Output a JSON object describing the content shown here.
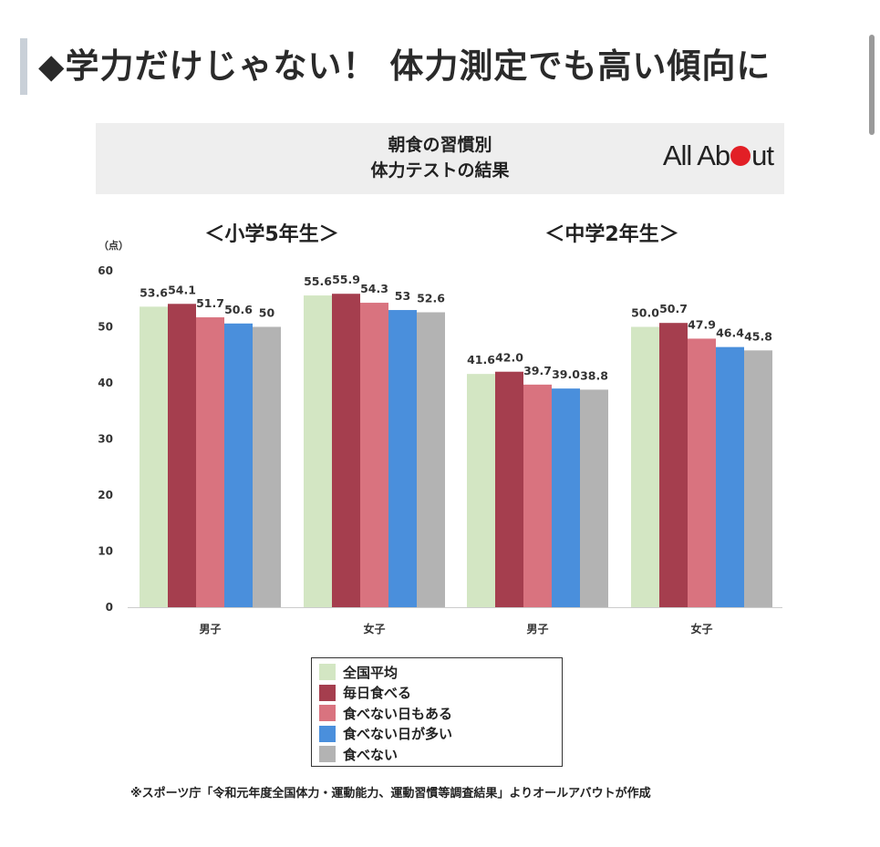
{
  "heading": "◆学力だけじゃない！ 体力測定でも高い傾向に",
  "figure": {
    "title_line1": "朝食の習慣別",
    "title_line2": "体力テストの結果",
    "logo_part1": "All Ab",
    "logo_part2": "ut",
    "source_note": "※スポーツ庁「令和元年度全国体力・運動能力、運動習慣等調査結果」よりオールアバウトが作成"
  },
  "chart_data": {
    "type": "bar",
    "unit_label": "（点）",
    "group_labels": [
      "＜小学5年生＞",
      "＜中学2年生＞"
    ],
    "categories": [
      "男子",
      "女子",
      "男子",
      "女子"
    ],
    "ylim": [
      0,
      60
    ],
    "yticks": [
      0,
      10,
      20,
      30,
      40,
      50,
      60
    ],
    "legend_position": "bottom-center",
    "grid": false,
    "series": [
      {
        "name": "全国平均",
        "color": "#d3e6c3",
        "values": [
          53.6,
          55.6,
          41.6,
          50.0
        ],
        "labels": [
          "53.6",
          "55.6",
          "41.6",
          "50.0"
        ]
      },
      {
        "name": "毎日食べる",
        "color": "#a53e4e",
        "values": [
          54.1,
          55.9,
          42.0,
          50.7
        ],
        "labels": [
          "54.1",
          "55.9",
          "42.0",
          "50.7"
        ]
      },
      {
        "name": "食べない日もある",
        "color": "#d9737f",
        "values": [
          51.7,
          54.3,
          39.7,
          47.9
        ],
        "labels": [
          "51.7",
          "54.3",
          "39.7",
          "47.9"
        ]
      },
      {
        "name": "食べない日が多い",
        "color": "#4a8fdc",
        "values": [
          50.6,
          53,
          39.0,
          46.4
        ],
        "labels": [
          "50.6",
          "53",
          "39.0",
          "46.4"
        ]
      },
      {
        "name": "食べない",
        "color": "#b3b3b3",
        "values": [
          50,
          52.6,
          38.8,
          45.8
        ],
        "labels": [
          "50",
          "52.6",
          "38.8",
          "45.8"
        ]
      }
    ]
  }
}
